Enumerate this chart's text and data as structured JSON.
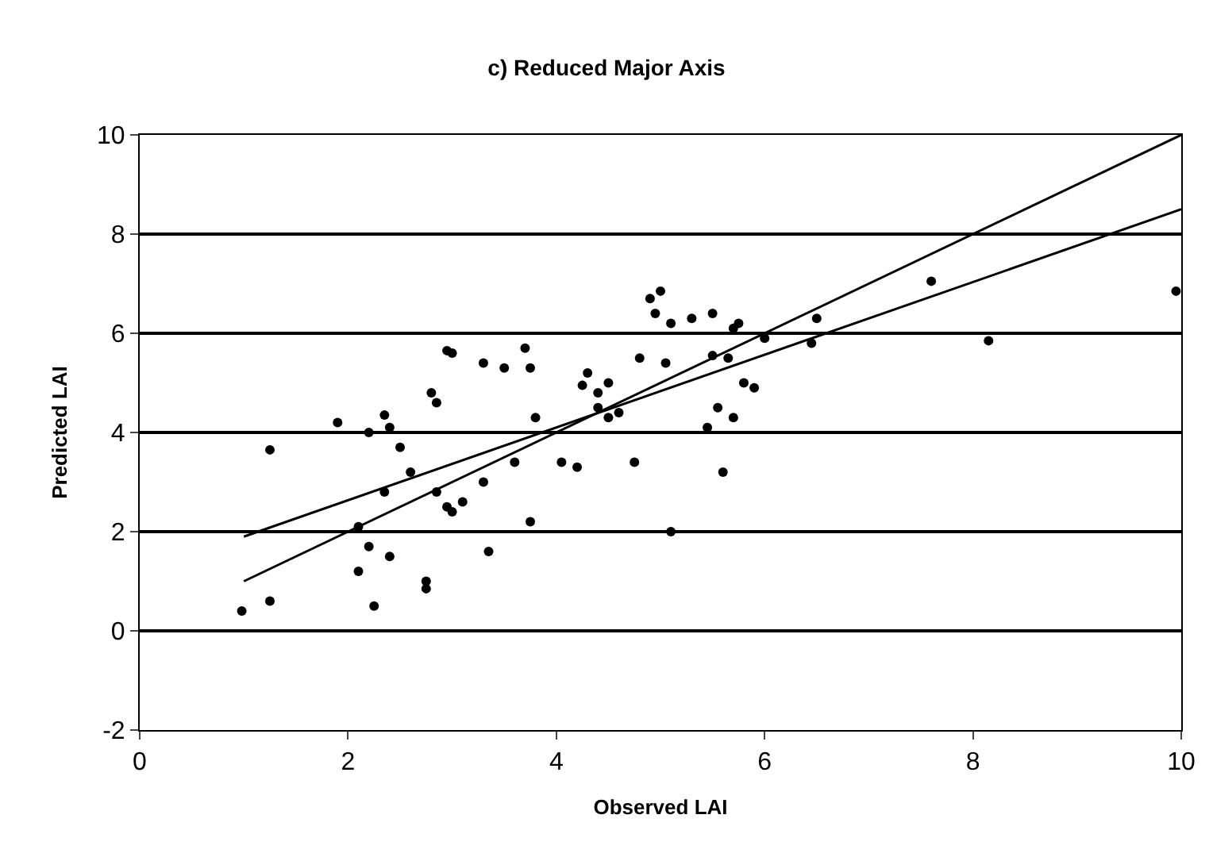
{
  "chart_data": {
    "type": "scatter",
    "title": "c) Reduced Major Axis",
    "xlabel": "Observed LAI",
    "ylabel": "Predicted LAI",
    "xlim": [
      0,
      10
    ],
    "xticks": [
      0,
      2,
      4,
      6,
      8,
      10
    ],
    "ylim": [
      -2,
      10
    ],
    "yticks": [
      -2,
      0,
      2,
      4,
      6,
      8,
      10
    ],
    "grid": "y",
    "series": [
      {
        "marker": "circle",
        "color": "#000000",
        "x": [
          0.98,
          1.25,
          1.25,
          1.9,
          2.1,
          2.1,
          2.2,
          2.2,
          2.25,
          2.35,
          2.35,
          2.4,
          2.4,
          2.5,
          2.6,
          2.75,
          2.75,
          2.8,
          2.85,
          2.85,
          2.95,
          2.95,
          3.0,
          3.0,
          3.1,
          3.3,
          3.3,
          3.35,
          3.5,
          3.6,
          3.7,
          3.75,
          3.75,
          3.8,
          4.05,
          4.2,
          4.25,
          4.3,
          4.4,
          4.4,
          4.5,
          4.5,
          4.6,
          4.75,
          4.8,
          4.9,
          4.95,
          5.0,
          5.05,
          5.1,
          5.1,
          5.3,
          5.45,
          5.5,
          5.5,
          5.55,
          5.6,
          5.65,
          5.7,
          5.75,
          5.7,
          5.8,
          5.9,
          6.0,
          6.45,
          6.5,
          7.6,
          8.15,
          9.95
        ],
        "values": [
          0.4,
          0.6,
          3.65,
          4.2,
          2.1,
          1.2,
          4.0,
          1.7,
          0.5,
          4.35,
          2.8,
          4.1,
          1.5,
          3.7,
          3.2,
          1.0,
          0.85,
          4.8,
          4.6,
          2.8,
          5.65,
          2.5,
          5.6,
          2.4,
          2.6,
          5.4,
          3.0,
          1.6,
          5.3,
          3.4,
          5.7,
          5.3,
          2.2,
          4.3,
          3.4,
          3.3,
          4.95,
          5.2,
          4.5,
          4.8,
          5.0,
          4.3,
          4.4,
          3.4,
          5.5,
          6.7,
          6.4,
          6.85,
          5.4,
          6.2,
          2.0,
          6.3,
          4.1,
          6.4,
          5.55,
          4.5,
          3.2,
          5.5,
          6.1,
          6.2,
          4.3,
          5.0,
          4.9,
          5.9,
          5.8,
          6.3,
          7.05,
          5.85,
          6.85
        ]
      },
      {
        "type": "line",
        "color": "#000000",
        "x": [
          1,
          10
        ],
        "values": [
          1,
          10
        ]
      },
      {
        "type": "line",
        "color": "#000000",
        "x": [
          1,
          10
        ],
        "values": [
          1.9,
          8.5
        ]
      }
    ]
  }
}
